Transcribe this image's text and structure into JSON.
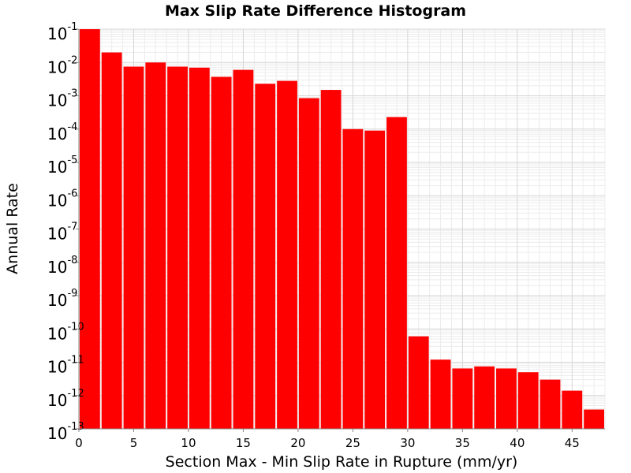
{
  "chart_data": {
    "type": "bar",
    "title": "Max Slip Rate Difference Histogram",
    "xlabel": "Section Max - Min Slip Rate in Rupture (mm/yr)",
    "ylabel": "Annual Rate",
    "xlim": [
      0,
      48
    ],
    "ylim": [
      1e-13,
      0.1
    ],
    "yscale": "log",
    "grid": true,
    "bar_color": "#ff0000",
    "bin_width": 2,
    "x_ticks": [
      "0",
      "5",
      "10",
      "15",
      "20",
      "25",
      "30",
      "35",
      "40",
      "45"
    ],
    "y_ticks": [
      {
        "base": "10",
        "exp": "-1"
      },
      {
        "base": "10",
        "exp": "-2"
      },
      {
        "base": "10",
        "exp": "-3"
      },
      {
        "base": "10",
        "exp": "-4"
      },
      {
        "base": "10",
        "exp": "-5"
      },
      {
        "base": "10",
        "exp": "-6"
      },
      {
        "base": "10",
        "exp": "-7"
      },
      {
        "base": "10",
        "exp": "-8"
      },
      {
        "base": "10",
        "exp": "-9"
      },
      {
        "base": "10",
        "exp": "-10"
      },
      {
        "base": "10",
        "exp": "-11"
      },
      {
        "base": "10",
        "exp": "-12"
      },
      {
        "base": "10",
        "exp": "-13"
      }
    ],
    "x": [
      1,
      3,
      5,
      7,
      9,
      11,
      13,
      15,
      17,
      19,
      21,
      23,
      25,
      27,
      29,
      31,
      33,
      35,
      37,
      39,
      41,
      43,
      45,
      47
    ],
    "values": [
      0.1,
      0.02,
      0.0075,
      0.01,
      0.0075,
      0.007,
      0.0037,
      0.006,
      0.0023,
      0.0028,
      0.00085,
      0.0015,
      0.0001,
      9e-05,
      0.00023,
      6e-11,
      1.2e-11,
      6.5e-12,
      7.5e-12,
      6.5e-12,
      5e-12,
      3e-12,
      1.4e-12,
      3.8e-13
    ]
  }
}
